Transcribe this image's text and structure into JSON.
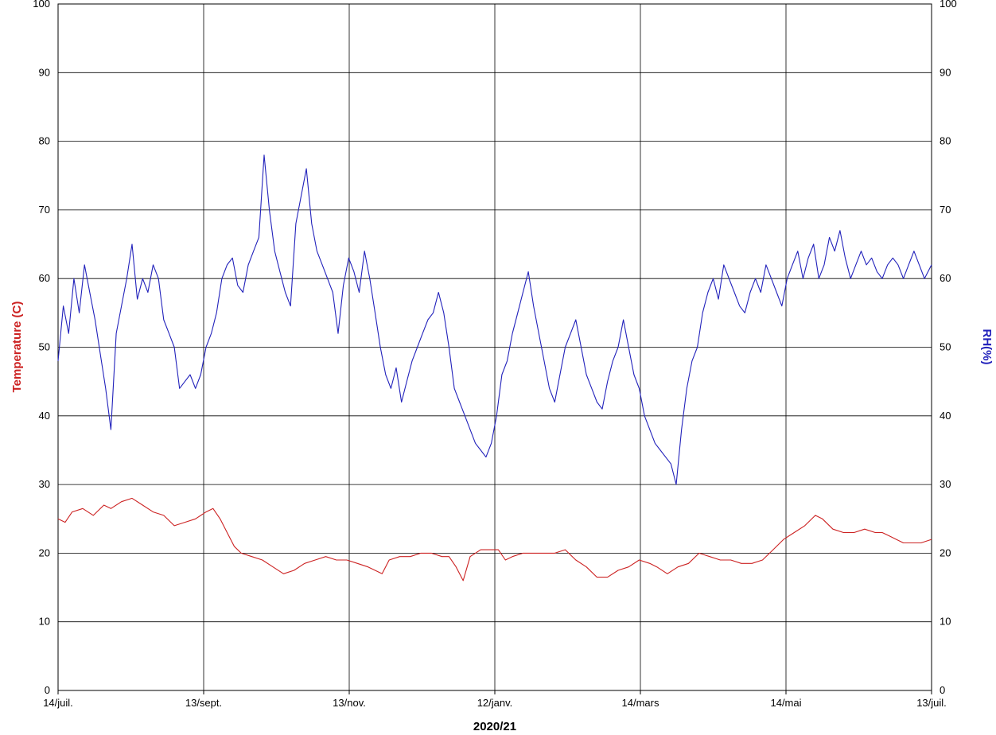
{
  "chart_data": {
    "type": "line",
    "xlabel": "2020/21",
    "ylabel_left": "Temperature (C)",
    "ylabel_right": "RH(%)",
    "ylim": [
      0,
      100
    ],
    "grid": true,
    "legend": "none",
    "x_ticks": [
      "14/juil.",
      "13/sept.",
      "13/nov.",
      "12/janv.",
      "14/mars",
      "14/mai",
      "13/juil."
    ],
    "y_ticks": [
      "0",
      "10",
      "20",
      "30",
      "40",
      "50",
      "60",
      "70",
      "80",
      "90",
      "100"
    ],
    "x_range_days": [
      0,
      364
    ],
    "series": [
      {
        "axis": "left",
        "color": "#cc2222",
        "points": [
          [
            0,
            25
          ],
          [
            4,
            24.5
          ],
          [
            8,
            26
          ],
          [
            14,
            26.5
          ],
          [
            20,
            25.5
          ],
          [
            26,
            27
          ],
          [
            30,
            26.5
          ],
          [
            36,
            27.5
          ],
          [
            42,
            28
          ],
          [
            48,
            27
          ],
          [
            54,
            26
          ],
          [
            60,
            25.5
          ],
          [
            66,
            24
          ],
          [
            72,
            24.5
          ],
          [
            78,
            25
          ],
          [
            84,
            26
          ],
          [
            88,
            26.5
          ],
          [
            92,
            25
          ],
          [
            96,
            23
          ],
          [
            100,
            21
          ],
          [
            104,
            20
          ],
          [
            110,
            19.5
          ],
          [
            116,
            19
          ],
          [
            122,
            18
          ],
          [
            128,
            17
          ],
          [
            134,
            17.5
          ],
          [
            140,
            18.5
          ],
          [
            146,
            19
          ],
          [
            152,
            19.5
          ],
          [
            158,
            19
          ],
          [
            164,
            19
          ],
          [
            170,
            18.5
          ],
          [
            176,
            18
          ],
          [
            180,
            17.5
          ],
          [
            184,
            17
          ],
          [
            188,
            19
          ],
          [
            194,
            19.5
          ],
          [
            200,
            19.5
          ],
          [
            206,
            20
          ],
          [
            212,
            20
          ],
          [
            218,
            19.5
          ],
          [
            222,
            19.5
          ],
          [
            226,
            18
          ],
          [
            230,
            16
          ],
          [
            234,
            19.5
          ],
          [
            240,
            20.5
          ],
          [
            246,
            20.5
          ],
          [
            250,
            20.5
          ],
          [
            254,
            19
          ],
          [
            258,
            19.5
          ],
          [
            264,
            20
          ],
          [
            270,
            20
          ],
          [
            276,
            20
          ],
          [
            282,
            20
          ],
          [
            288,
            20.5
          ],
          [
            294,
            19
          ],
          [
            300,
            18
          ],
          [
            306,
            16.5
          ],
          [
            312,
            16.5
          ],
          [
            318,
            17.5
          ],
          [
            324,
            18
          ],
          [
            330,
            19
          ],
          [
            336,
            18.5
          ],
          [
            340,
            18
          ],
          [
            346,
            17
          ],
          [
            352,
            18
          ],
          [
            358,
            18.5
          ],
          [
            364,
            20
          ],
          [
            370,
            19.5
          ],
          [
            376,
            19
          ],
          [
            382,
            19
          ],
          [
            388,
            18.5
          ],
          [
            394,
            18.5
          ],
          [
            400,
            19
          ],
          [
            406,
            20.5
          ],
          [
            412,
            22
          ],
          [
            418,
            23
          ],
          [
            424,
            24
          ],
          [
            430,
            25.5
          ],
          [
            434,
            25
          ],
          [
            440,
            23.5
          ],
          [
            446,
            23
          ],
          [
            452,
            23
          ],
          [
            458,
            23.5
          ],
          [
            464,
            23
          ],
          [
            468,
            23
          ],
          [
            472,
            22.5
          ],
          [
            476,
            22
          ],
          [
            480,
            21.5
          ],
          [
            486,
            21.5
          ],
          [
            490,
            21.5
          ],
          [
            496,
            22
          ]
        ]
      },
      {
        "axis": "right",
        "color": "#2222bb",
        "points": [
          [
            0,
            48
          ],
          [
            3,
            56
          ],
          [
            6,
            52
          ],
          [
            9,
            60
          ],
          [
            12,
            55
          ],
          [
            15,
            62
          ],
          [
            18,
            58
          ],
          [
            21,
            54
          ],
          [
            24,
            49
          ],
          [
            27,
            44
          ],
          [
            30,
            38
          ],
          [
            33,
            52
          ],
          [
            36,
            56
          ],
          [
            39,
            60
          ],
          [
            42,
            65
          ],
          [
            45,
            57
          ],
          [
            48,
            60
          ],
          [
            51,
            58
          ],
          [
            54,
            62
          ],
          [
            57,
            60
          ],
          [
            60,
            54
          ],
          [
            63,
            52
          ],
          [
            66,
            50
          ],
          [
            69,
            44
          ],
          [
            72,
            45
          ],
          [
            75,
            46
          ],
          [
            78,
            44
          ],
          [
            81,
            46
          ],
          [
            84,
            50
          ],
          [
            87,
            52
          ],
          [
            90,
            55
          ],
          [
            93,
            60
          ],
          [
            96,
            62
          ],
          [
            99,
            63
          ],
          [
            102,
            59
          ],
          [
            105,
            58
          ],
          [
            108,
            62
          ],
          [
            111,
            64
          ],
          [
            114,
            66
          ],
          [
            117,
            78
          ],
          [
            120,
            70
          ],
          [
            123,
            64
          ],
          [
            126,
            61
          ],
          [
            129,
            58
          ],
          [
            132,
            56
          ],
          [
            135,
            68
          ],
          [
            138,
            72
          ],
          [
            141,
            76
          ],
          [
            144,
            68
          ],
          [
            147,
            64
          ],
          [
            150,
            62
          ],
          [
            153,
            60
          ],
          [
            156,
            58
          ],
          [
            159,
            52
          ],
          [
            162,
            59
          ],
          [
            165,
            63
          ],
          [
            168,
            61
          ],
          [
            171,
            58
          ],
          [
            174,
            64
          ],
          [
            177,
            60
          ],
          [
            180,
            55
          ],
          [
            183,
            50
          ],
          [
            186,
            46
          ],
          [
            189,
            44
          ],
          [
            192,
            47
          ],
          [
            195,
            42
          ],
          [
            198,
            45
          ],
          [
            201,
            48
          ],
          [
            204,
            50
          ],
          [
            207,
            52
          ],
          [
            210,
            54
          ],
          [
            213,
            55
          ],
          [
            216,
            58
          ],
          [
            219,
            55
          ],
          [
            222,
            50
          ],
          [
            225,
            44
          ],
          [
            228,
            42
          ],
          [
            231,
            40
          ],
          [
            234,
            38
          ],
          [
            237,
            36
          ],
          [
            240,
            35
          ],
          [
            243,
            34
          ],
          [
            246,
            36
          ],
          [
            249,
            40
          ],
          [
            252,
            46
          ],
          [
            255,
            48
          ],
          [
            258,
            52
          ],
          [
            261,
            55
          ],
          [
            264,
            58
          ],
          [
            267,
            61
          ],
          [
            270,
            56
          ],
          [
            273,
            52
          ],
          [
            276,
            48
          ],
          [
            279,
            44
          ],
          [
            282,
            42
          ],
          [
            285,
            46
          ],
          [
            288,
            50
          ],
          [
            291,
            52
          ],
          [
            294,
            54
          ],
          [
            297,
            50
          ],
          [
            300,
            46
          ],
          [
            303,
            44
          ],
          [
            306,
            42
          ],
          [
            309,
            41
          ],
          [
            312,
            45
          ],
          [
            315,
            48
          ],
          [
            318,
            50
          ],
          [
            321,
            54
          ],
          [
            324,
            50
          ],
          [
            327,
            46
          ],
          [
            330,
            44
          ],
          [
            333,
            40
          ],
          [
            336,
            38
          ],
          [
            339,
            36
          ],
          [
            342,
            35
          ],
          [
            345,
            34
          ],
          [
            348,
            33
          ],
          [
            351,
            30
          ],
          [
            354,
            38
          ],
          [
            357,
            44
          ],
          [
            360,
            48
          ],
          [
            363,
            50
          ],
          [
            366,
            55
          ],
          [
            369,
            58
          ],
          [
            372,
            60
          ],
          [
            375,
            57
          ],
          [
            378,
            62
          ],
          [
            381,
            60
          ],
          [
            384,
            58
          ],
          [
            387,
            56
          ],
          [
            390,
            55
          ],
          [
            393,
            58
          ],
          [
            396,
            60
          ],
          [
            399,
            58
          ],
          [
            402,
            62
          ],
          [
            405,
            60
          ],
          [
            408,
            58
          ],
          [
            411,
            56
          ],
          [
            414,
            60
          ],
          [
            417,
            62
          ],
          [
            420,
            64
          ],
          [
            423,
            60
          ],
          [
            426,
            63
          ],
          [
            429,
            65
          ],
          [
            432,
            60
          ],
          [
            435,
            62
          ],
          [
            438,
            66
          ],
          [
            441,
            64
          ],
          [
            444,
            67
          ],
          [
            447,
            63
          ],
          [
            450,
            60
          ],
          [
            453,
            62
          ],
          [
            456,
            64
          ],
          [
            459,
            62
          ],
          [
            462,
            63
          ],
          [
            465,
            61
          ],
          [
            468,
            60
          ],
          [
            471,
            62
          ],
          [
            474,
            63
          ],
          [
            477,
            62
          ],
          [
            480,
            60
          ],
          [
            483,
            62
          ],
          [
            486,
            64
          ],
          [
            489,
            62
          ],
          [
            492,
            60
          ],
          [
            496,
            62
          ]
        ]
      }
    ]
  }
}
